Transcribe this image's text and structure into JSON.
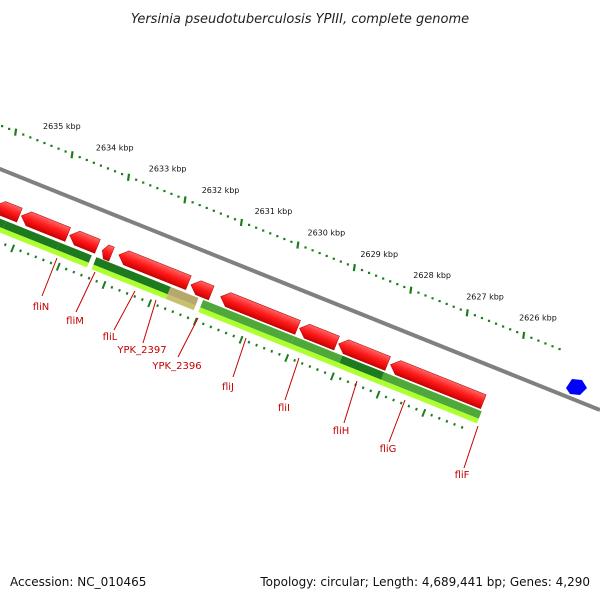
{
  "title": "Yersinia pseudotuberculosis YPIII, complete genome",
  "footer": {
    "accession": "Accession: NC_010465",
    "topology": "Topology: circular; Length: 4,689,441 bp; Genes: 4,290"
  },
  "kbp_ticks": [
    "2635 kbp",
    "2634 kbp",
    "2633 kbp",
    "2632 kbp",
    "2631 kbp",
    "2630 kbp",
    "2629 kbp",
    "2628 kbp",
    "2627 kbp",
    "2626 kbp"
  ],
  "genes": [
    "fliN",
    "fliM",
    "fliL",
    "YPK_2397",
    "YPK_2396",
    "fliJ",
    "fliI",
    "fliH",
    "fliG",
    "fliF"
  ],
  "colors": {
    "cds": "#ff0000",
    "gene_dark": "#1e7a1e",
    "gene_light": "#adff2f",
    "backbone": "#808080",
    "label": "#c40000",
    "marker": "#0000ff",
    "tick": "#1a7f1a"
  }
}
